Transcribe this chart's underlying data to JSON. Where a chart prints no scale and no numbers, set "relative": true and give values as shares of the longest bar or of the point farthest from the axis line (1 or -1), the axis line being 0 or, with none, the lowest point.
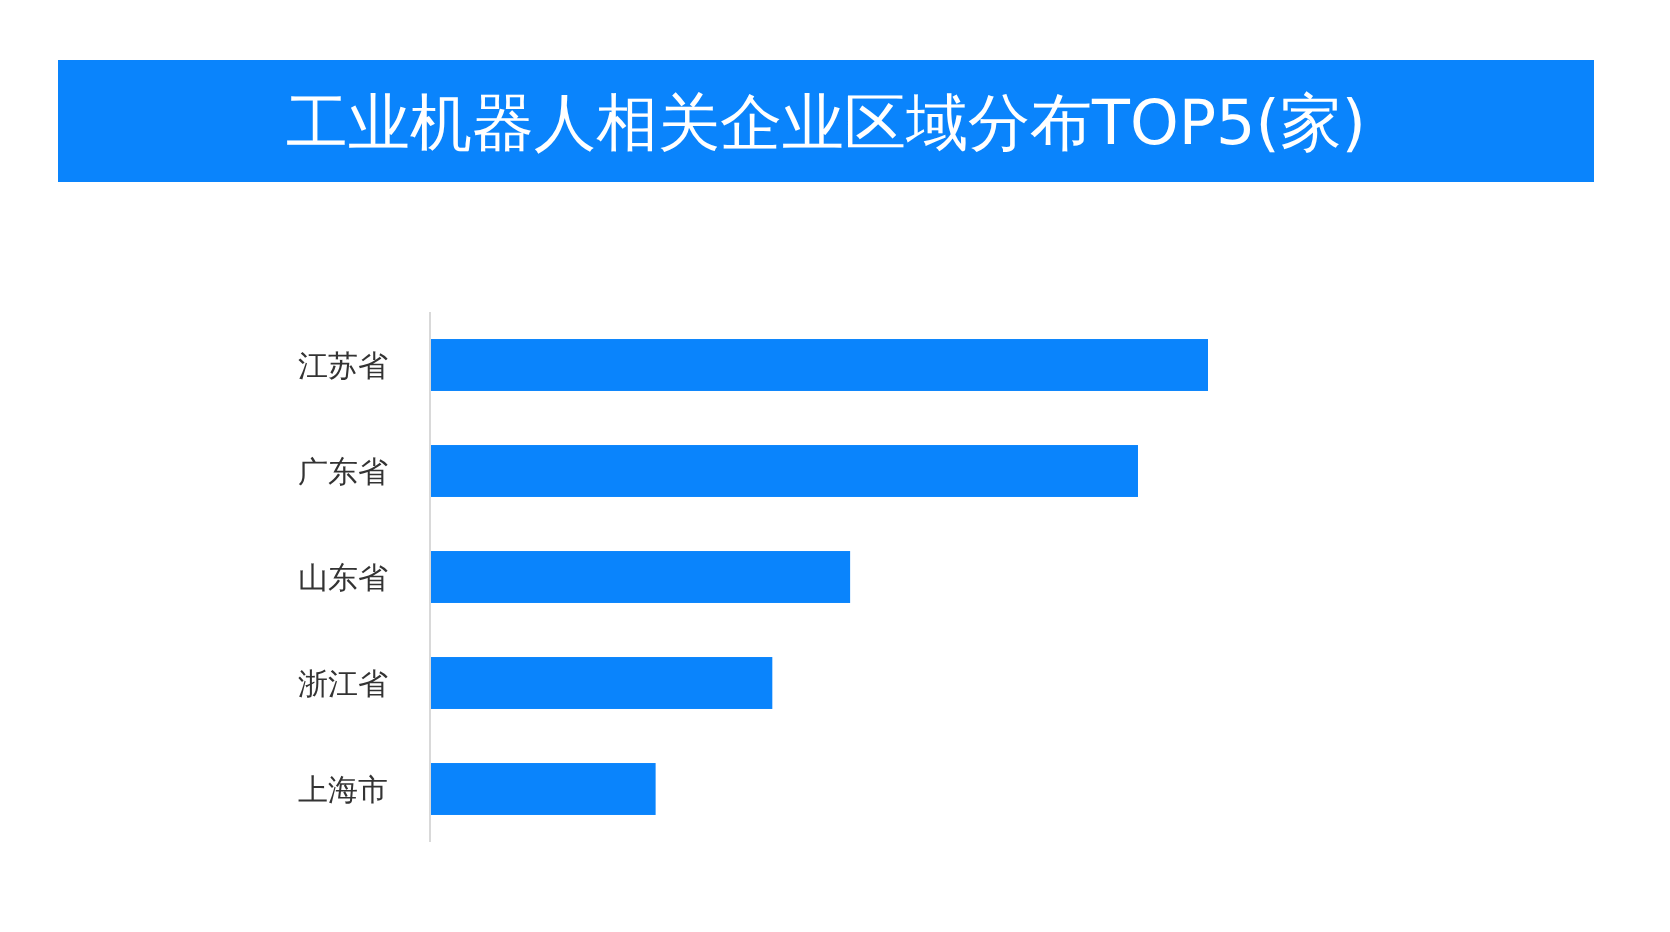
{
  "chart_data": {
    "type": "bar",
    "orientation": "horizontal",
    "relative": true,
    "title": "工业机器人相关企业区域分布TOP5(家)",
    "categories": [
      "江苏省",
      "广东省",
      "山东省",
      "浙江省",
      "上海市"
    ],
    "values": [
      1,
      0.91,
      0.54,
      0.44,
      0.29
    ],
    "color": "#0a84fc"
  }
}
